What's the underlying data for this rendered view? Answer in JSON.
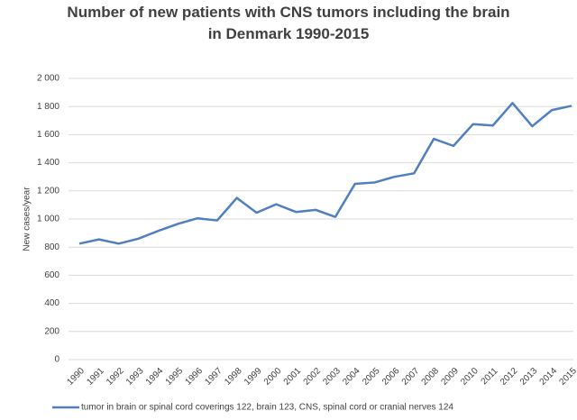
{
  "chart_data": {
    "type": "line",
    "title": "Number of new patients with CNS tumors including the brain in Denmark 1990-2015",
    "y_label": "New cases/year",
    "categories": [
      "1990",
      "1991",
      "1992",
      "1993",
      "1994",
      "1995",
      "1996",
      "1997",
      "1998",
      "1999",
      "2000",
      "2001",
      "2002",
      "2003",
      "2004",
      "2005",
      "2006",
      "2007",
      "2008",
      "2009",
      "2010",
      "2011",
      "2012",
      "2013",
      "2014",
      "2015"
    ],
    "series": [
      {
        "name": "tumor in brain or spinal cord coverings 122, brain 123, CNS, spinal cord or cranial nerves 124",
        "color": "#4f7fbf",
        "values": [
          825,
          855,
          825,
          860,
          915,
          965,
          1005,
          990,
          1150,
          1045,
          1105,
          1050,
          1065,
          1015,
          1250,
          1260,
          1300,
          1325,
          1570,
          1520,
          1675,
          1665,
          1825,
          1660,
          1775,
          1805
        ]
      }
    ],
    "ylim": [
      0,
      2000
    ],
    "yticks": [
      0,
      200,
      400,
      600,
      800,
      {
        "value": 1000,
        "label": "1 000"
      },
      {
        "value": 1200,
        "label": "1 200"
      },
      {
        "value": 1400,
        "label": "1 400"
      },
      {
        "value": 1600,
        "label": "1 600"
      },
      {
        "value": 1800,
        "label": "1 800"
      },
      {
        "value": 2000,
        "label": "2 000"
      }
    ],
    "grid": true,
    "legend": "bottom"
  }
}
